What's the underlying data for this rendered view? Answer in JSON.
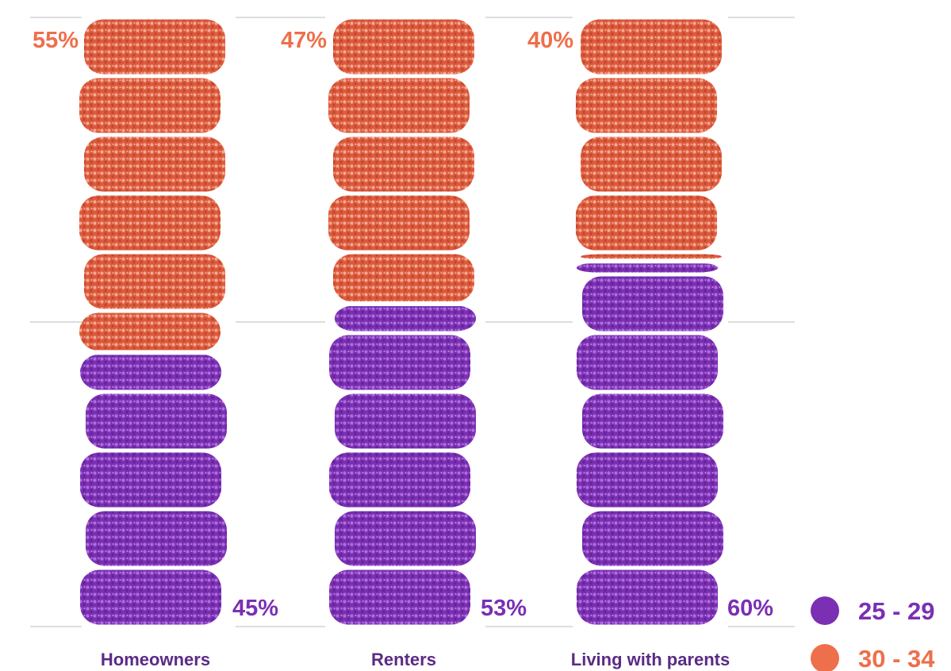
{
  "chart_data": {
    "type": "bar",
    "stacked": true,
    "orientation": "vertical",
    "categories": [
      "Homeowners",
      "Renters",
      "Living with parents"
    ],
    "series": [
      {
        "name": "25 - 29",
        "values": [
          45,
          53,
          60
        ],
        "color": "#7B2FB3",
        "label_suffix": "%"
      },
      {
        "name": "30 - 34",
        "values": [
          55,
          47,
          40
        ],
        "color": "#EE6F4B",
        "label_suffix": "%"
      }
    ],
    "ylim": [
      0,
      100
    ],
    "grid": "horizontal",
    "legend_position": "bottom-right",
    "bar_style": "stacked cereal-bar pieces"
  }
}
